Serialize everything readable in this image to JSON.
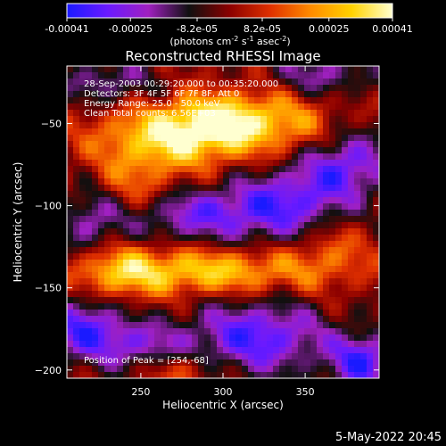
{
  "colorbar": {
    "tick_labels": [
      "-0.00041",
      "-0.00025",
      "-8.2e-05",
      "8.2e-05",
      "0.00025",
      "0.00041"
    ],
    "tick_values": [
      -0.00041,
      -0.00025,
      -8.2e-05,
      8.2e-05,
      0.00025,
      0.00041
    ],
    "range": [
      -0.00041,
      0.00041
    ],
    "units_main": "(photons cm",
    "units_exp1": "-2",
    "units_mid": " s",
    "units_exp2": "-1",
    "units_tail": " asec",
    "units_exp3": "-2",
    "units_close": ")",
    "colormap": [
      "#1a1aff",
      "#6a1aff",
      "#a020c0",
      "#101010",
      "#8b0000",
      "#e03000",
      "#ff8c00",
      "#ffd200",
      "#ffffd0"
    ]
  },
  "chart_data": {
    "type": "heatmap",
    "title": "Reconstructed RHESSI Image",
    "xlabel": "Heliocentric X (arcsec)",
    "ylabel": "Heliocentric Y (arcsec)",
    "xlim": [
      205,
      395
    ],
    "ylim": [
      -205,
      -15
    ],
    "x_ticks": [
      250,
      300,
      350
    ],
    "y_ticks": [
      -50,
      -100,
      -150,
      -200
    ],
    "x_tick_labels": [
      "250",
      "300",
      "350"
    ],
    "y_tick_labels": [
      "−50",
      "−100",
      "−150",
      "−200"
    ],
    "annotations": [
      "28-Sep-2003 00:29:20.000 to 00:35:20.000",
      "Detectors: 3F 4F 5F 6F 7F 8F, Att 0",
      "Energy Range: 25.0 - 50.0 keV",
      "Clean     Total counts: 6.56E+03"
    ],
    "peak_label": "Position of Peak = [254,-68]",
    "peak_position": [
      254,
      -68
    ],
    "sources": [
      {
        "x": 268,
        "y": -58,
        "strength": 1.0,
        "sx": 32,
        "sy": 14
      },
      {
        "x": 300,
        "y": -48,
        "strength": 0.8,
        "sx": 22,
        "sy": 12
      },
      {
        "x": 340,
        "y": -50,
        "strength": 0.55,
        "sx": 22,
        "sy": 14
      },
      {
        "x": 240,
        "y": -90,
        "strength": 0.55,
        "sx": 24,
        "sy": 14
      },
      {
        "x": 290,
        "y": -140,
        "strength": 0.9,
        "sx": 45,
        "sy": 10
      },
      {
        "x": 235,
        "y": -140,
        "strength": 0.6,
        "sx": 18,
        "sy": 12
      },
      {
        "x": 365,
        "y": -125,
        "strength": 0.45,
        "sx": 18,
        "sy": 15
      },
      {
        "x": 275,
        "y": -200,
        "strength": 0.45,
        "sx": 16,
        "sy": 8
      },
      {
        "x": 220,
        "y": -105,
        "strength": -0.7,
        "sx": 14,
        "sy": 18
      },
      {
        "x": 280,
        "y": -105,
        "strength": -0.8,
        "sx": 30,
        "sy": 12
      },
      {
        "x": 340,
        "y": -100,
        "strength": -0.9,
        "sx": 26,
        "sy": 16
      },
      {
        "x": 375,
        "y": -75,
        "strength": -0.85,
        "sx": 20,
        "sy": 14
      },
      {
        "x": 215,
        "y": -175,
        "strength": -0.95,
        "sx": 18,
        "sy": 14
      },
      {
        "x": 320,
        "y": -180,
        "strength": -1.0,
        "sx": 30,
        "sy": 16
      },
      {
        "x": 385,
        "y": -195,
        "strength": -1.0,
        "sx": 14,
        "sy": 12
      },
      {
        "x": 250,
        "y": -185,
        "strength": -0.6,
        "sx": 18,
        "sy": 10
      },
      {
        "x": 230,
        "y": -25,
        "strength": -0.55,
        "sx": 22,
        "sy": 10
      },
      {
        "x": 360,
        "y": -20,
        "strength": -0.6,
        "sx": 22,
        "sy": 10
      }
    ]
  },
  "footer": {
    "date": "5-May-2022 20:45"
  }
}
